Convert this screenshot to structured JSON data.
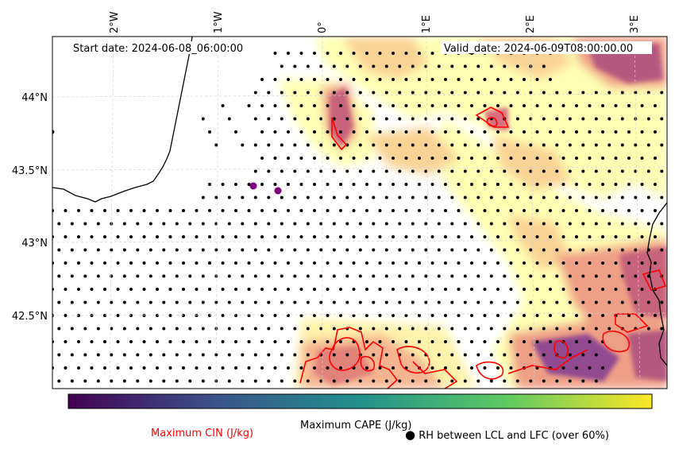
{
  "map": {
    "start_date": "Start date: 2024-06-08_06:00:00",
    "valid_date": "Valid_date: 2024-06-09T08:00:00.00",
    "lon_ticks": [
      "2°W",
      "1°W",
      "0°",
      "1°E",
      "2°E",
      "3°E"
    ],
    "lat_ticks": [
      "44°N",
      "43.5°N",
      "43°N",
      "42.5°N"
    ]
  },
  "colorbar": {
    "label": "Maximum CAPE (J/kg)",
    "colormap": "viridis",
    "colors": [
      "#440154",
      "#3b528b",
      "#21918c",
      "#5ec962",
      "#fde725"
    ]
  },
  "legend": {
    "cin_label": "Maximum CIN (J/kg)",
    "cin_color": "#ff0000",
    "rh_symbol": "●",
    "rh_label": "RH between LCL and LFC (over 60%)"
  },
  "colors": {
    "cape_field": [
      "#ffffb0",
      "#f9d190",
      "#ef9a80",
      "#d9667c",
      "#9c4b8a",
      "#6a3d90"
    ],
    "coastline": "#000000",
    "marker": "#800080"
  }
}
